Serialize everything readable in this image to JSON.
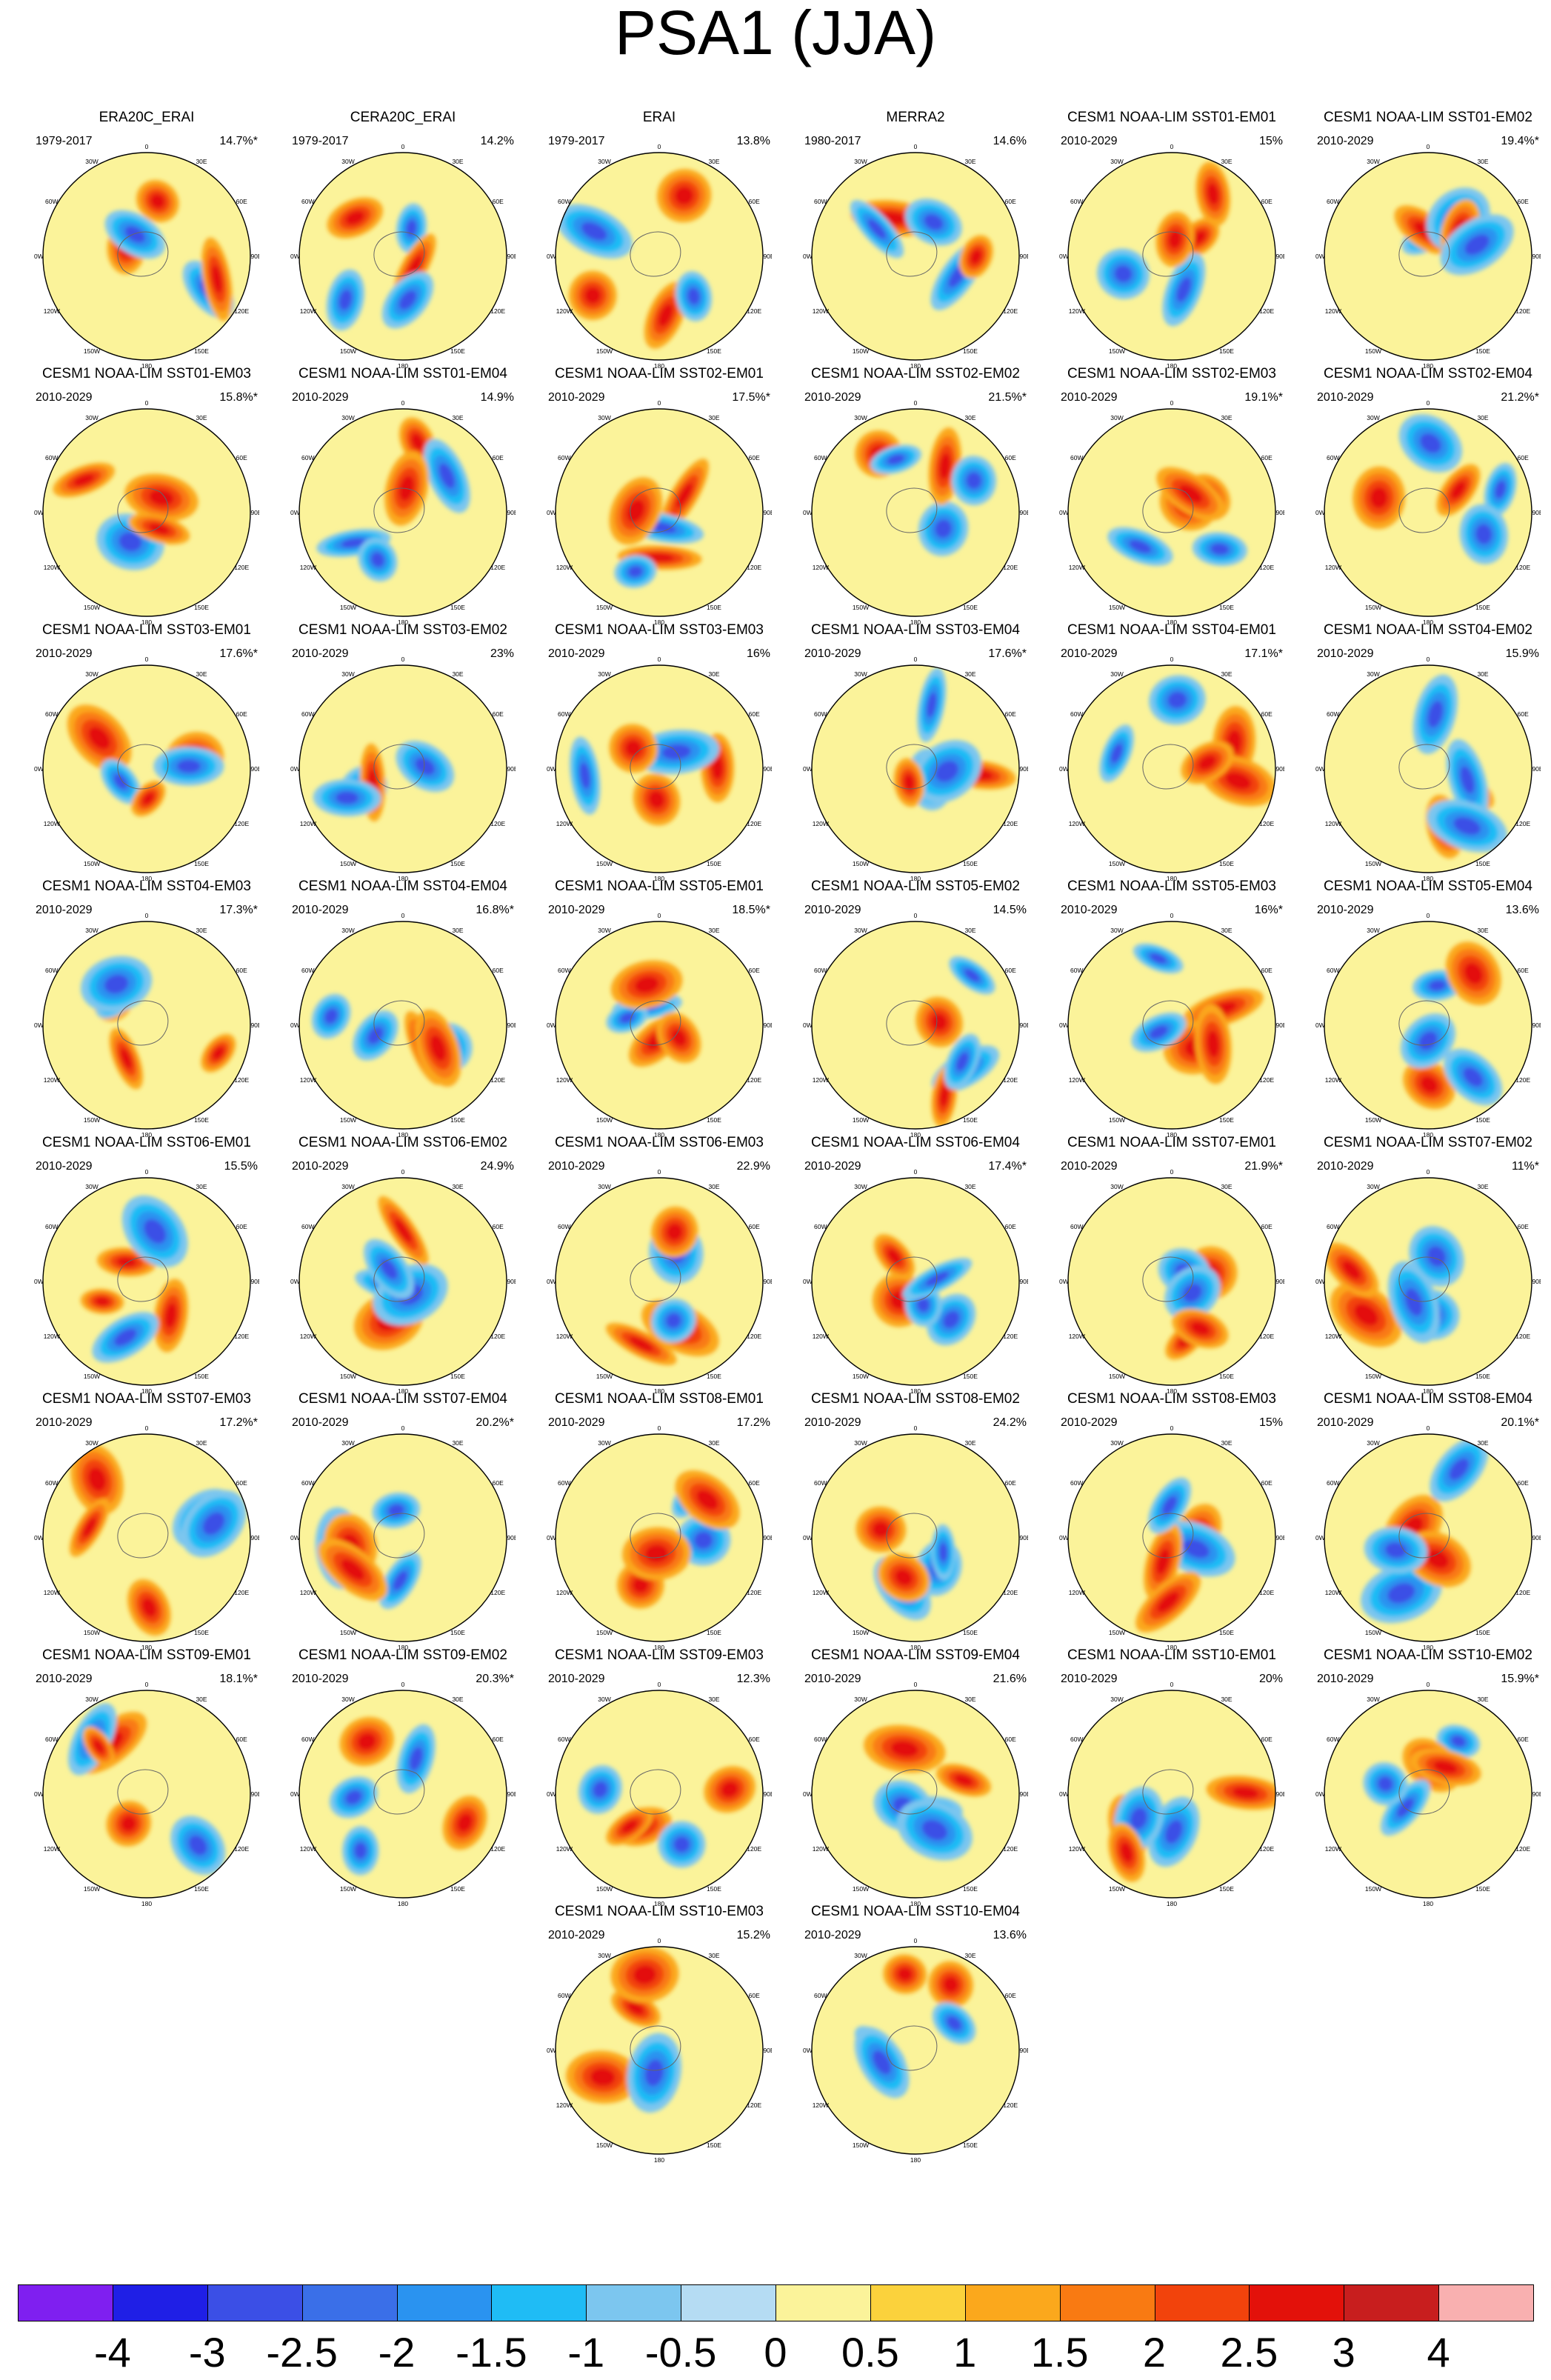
{
  "title": "PSA1 (JJA)",
  "chart_data": {
    "type": "heatmap",
    "projection": "south polar stereographic",
    "longitude_labels": [
      "0",
      "30E",
      "60E",
      "90E",
      "120E",
      "150E",
      "180",
      "150W",
      "120W",
      "90W",
      "60W",
      "30W"
    ],
    "panels": [
      {
        "title": "ERA20C_ERAI",
        "period": "1979-2017",
        "percent": "14.7%*"
      },
      {
        "title": "CERA20C_ERAI",
        "period": "1979-2017",
        "percent": "14.2%"
      },
      {
        "title": "ERAI",
        "period": "1979-2017",
        "percent": "13.8%"
      },
      {
        "title": "MERRA2",
        "period": "1980-2017",
        "percent": "14.6%"
      },
      {
        "title": "CESM1 NOAA-LIM SST01-EM01",
        "period": "2010-2029",
        "percent": "15%"
      },
      {
        "title": "CESM1 NOAA-LIM SST01-EM02",
        "period": "2010-2029",
        "percent": "19.4%*"
      },
      {
        "title": "CESM1 NOAA-LIM SST01-EM03",
        "period": "2010-2029",
        "percent": "15.8%*"
      },
      {
        "title": "CESM1 NOAA-LIM SST01-EM04",
        "period": "2010-2029",
        "percent": "14.9%"
      },
      {
        "title": "CESM1 NOAA-LIM SST02-EM01",
        "period": "2010-2029",
        "percent": "17.5%*"
      },
      {
        "title": "CESM1 NOAA-LIM SST02-EM02",
        "period": "2010-2029",
        "percent": "21.5%*"
      },
      {
        "title": "CESM1 NOAA-LIM SST02-EM03",
        "period": "2010-2029",
        "percent": "19.1%*"
      },
      {
        "title": "CESM1 NOAA-LIM SST02-EM04",
        "period": "2010-2029",
        "percent": "21.2%*"
      },
      {
        "title": "CESM1 NOAA-LIM SST03-EM01",
        "period": "2010-2029",
        "percent": "17.6%*"
      },
      {
        "title": "CESM1 NOAA-LIM SST03-EM02",
        "period": "2010-2029",
        "percent": "23%"
      },
      {
        "title": "CESM1 NOAA-LIM SST03-EM03",
        "period": "2010-2029",
        "percent": "16%"
      },
      {
        "title": "CESM1 NOAA-LIM SST03-EM04",
        "period": "2010-2029",
        "percent": "17.6%*"
      },
      {
        "title": "CESM1 NOAA-LIM SST04-EM01",
        "period": "2010-2029",
        "percent": "17.1%*"
      },
      {
        "title": "CESM1 NOAA-LIM SST04-EM02",
        "period": "2010-2029",
        "percent": "15.9%"
      },
      {
        "title": "CESM1 NOAA-LIM SST04-EM03",
        "period": "2010-2029",
        "percent": "17.3%*"
      },
      {
        "title": "CESM1 NOAA-LIM SST04-EM04",
        "period": "2010-2029",
        "percent": "16.8%*"
      },
      {
        "title": "CESM1 NOAA-LIM SST05-EM01",
        "period": "2010-2029",
        "percent": "18.5%*"
      },
      {
        "title": "CESM1 NOAA-LIM SST05-EM02",
        "period": "2010-2029",
        "percent": "14.5%"
      },
      {
        "title": "CESM1 NOAA-LIM SST05-EM03",
        "period": "2010-2029",
        "percent": "16%*"
      },
      {
        "title": "CESM1 NOAA-LIM SST05-EM04",
        "period": "2010-2029",
        "percent": "13.6%"
      },
      {
        "title": "CESM1 NOAA-LIM SST06-EM01",
        "period": "2010-2029",
        "percent": "15.5%"
      },
      {
        "title": "CESM1 NOAA-LIM SST06-EM02",
        "period": "2010-2029",
        "percent": "24.9%"
      },
      {
        "title": "CESM1 NOAA-LIM SST06-EM03",
        "period": "2010-2029",
        "percent": "22.9%"
      },
      {
        "title": "CESM1 NOAA-LIM SST06-EM04",
        "period": "2010-2029",
        "percent": "17.4%*"
      },
      {
        "title": "CESM1 NOAA-LIM SST07-EM01",
        "period": "2010-2029",
        "percent": "21.9%*"
      },
      {
        "title": "CESM1 NOAA-LIM SST07-EM02",
        "period": "2010-2029",
        "percent": "11%*"
      },
      {
        "title": "CESM1 NOAA-LIM SST07-EM03",
        "period": "2010-2029",
        "percent": "17.2%*"
      },
      {
        "title": "CESM1 NOAA-LIM SST07-EM04",
        "period": "2010-2029",
        "percent": "20.2%*"
      },
      {
        "title": "CESM1 NOAA-LIM SST08-EM01",
        "period": "2010-2029",
        "percent": "17.2%"
      },
      {
        "title": "CESM1 NOAA-LIM SST08-EM02",
        "period": "2010-2029",
        "percent": "24.2%"
      },
      {
        "title": "CESM1 NOAA-LIM SST08-EM03",
        "period": "2010-2029",
        "percent": "15%"
      },
      {
        "title": "CESM1 NOAA-LIM SST08-EM04",
        "period": "2010-2029",
        "percent": "20.1%*"
      },
      {
        "title": "CESM1 NOAA-LIM SST09-EM01",
        "period": "2010-2029",
        "percent": "18.1%*"
      },
      {
        "title": "CESM1 NOAA-LIM SST09-EM02",
        "period": "2010-2029",
        "percent": "20.3%*"
      },
      {
        "title": "CESM1 NOAA-LIM SST09-EM03",
        "period": "2010-2029",
        "percent": "12.3%"
      },
      {
        "title": "CESM1 NOAA-LIM SST09-EM04",
        "period": "2010-2029",
        "percent": "21.6%"
      },
      {
        "title": "CESM1 NOAA-LIM SST10-EM01",
        "period": "2010-2029",
        "percent": "20%"
      },
      {
        "title": "CESM1 NOAA-LIM SST10-EM02",
        "period": "2010-2029",
        "percent": "15.9%*"
      },
      {
        "title": "CESM1 NOAA-LIM SST10-EM03",
        "period": "2010-2029",
        "percent": "15.2%"
      },
      {
        "title": "CESM1 NOAA-LIM SST10-EM04",
        "period": "2010-2029",
        "percent": "13.6%"
      }
    ],
    "colorbar": {
      "tick_labels": [
        "-4",
        "-3",
        "-2.5",
        "-2",
        "-1.5",
        "-1",
        "-0.5",
        "0",
        "0.5",
        "1",
        "1.5",
        "2",
        "2.5",
        "3",
        "4"
      ],
      "colors": [
        "#7f1ff0",
        "#1f1fe6",
        "#3b4fe6",
        "#3a6fe8",
        "#2a93f0",
        "#1fbcf5",
        "#7cc6ef",
        "#b5dcf3",
        "#fbf39a",
        "#fbd23c",
        "#fba81c",
        "#f97a12",
        "#f2430c",
        "#e3110a",
        "#c81e1e",
        "#f9b0b0"
      ]
    }
  }
}
